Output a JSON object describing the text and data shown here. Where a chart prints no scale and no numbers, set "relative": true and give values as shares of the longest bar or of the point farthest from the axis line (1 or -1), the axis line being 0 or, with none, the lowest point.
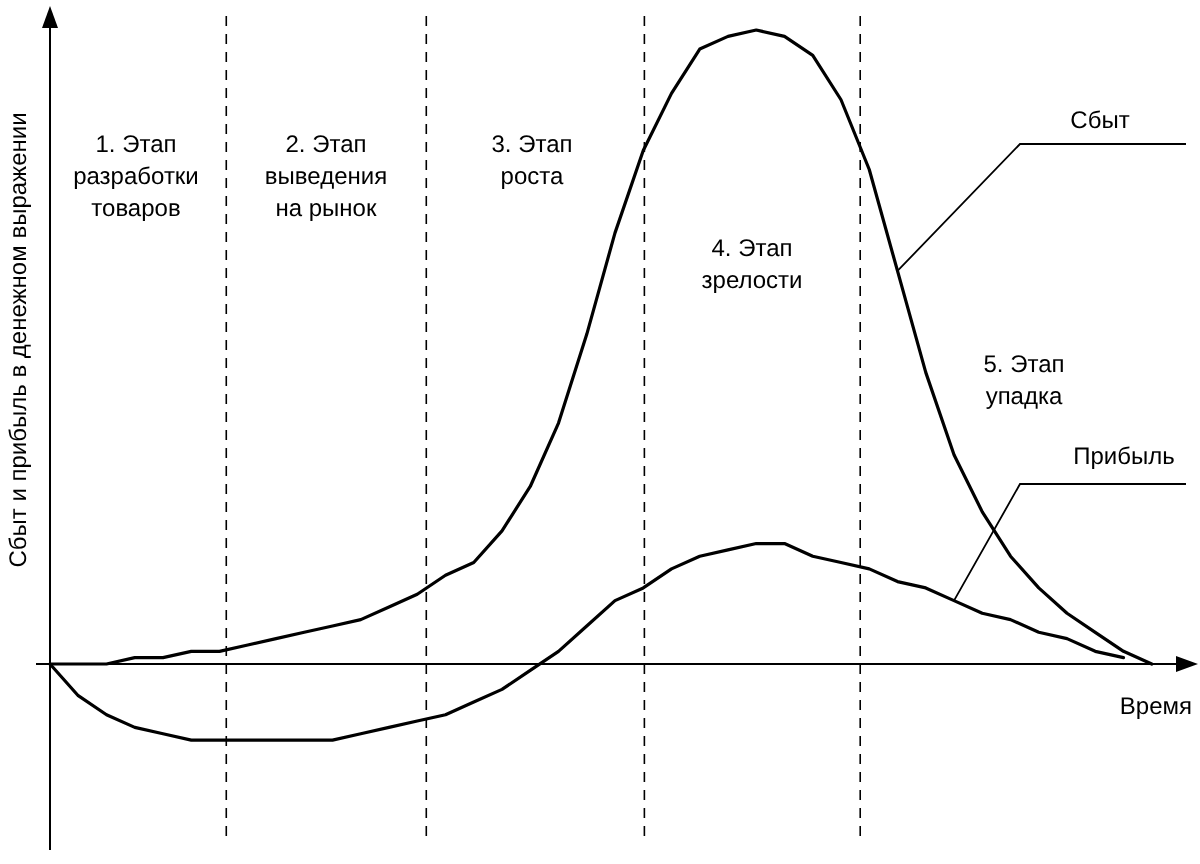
{
  "chart_data": {
    "type": "line",
    "relative": true,
    "xlabel": "Время",
    "ylabel": "Сбыт и прибыль в денежном выражении",
    "categories": [
      null,
      null,
      null,
      null,
      null,
      null,
      null,
      null,
      null,
      null,
      null,
      null,
      null,
      null,
      null,
      null,
      null,
      null,
      null,
      null,
      null,
      null,
      null,
      null,
      null,
      null,
      null,
      null,
      null,
      null,
      null,
      null,
      null,
      null,
      null,
      null,
      null,
      null,
      null,
      null,
      null
    ],
    "series": [
      {
        "name": "Сбыт",
        "color": "#000000",
        "values": [
          0,
          0,
          0,
          0.01,
          0.01,
          0.02,
          0.02,
          0.03,
          0.04,
          0.05,
          0.06,
          0.07,
          0.09,
          0.11,
          0.14,
          0.16,
          0.21,
          0.28,
          0.38,
          0.52,
          0.68,
          0.81,
          0.9,
          0.97,
          0.99,
          1,
          0.99,
          0.96,
          0.89,
          0.78,
          0.62,
          0.46,
          0.33,
          0.24,
          0.17,
          0.12,
          0.08,
          0.05,
          0.02,
          0,
          null
        ]
      },
      {
        "name": "Прибыль",
        "color": "#000000",
        "values": [
          0,
          -0.05,
          -0.08,
          -0.1,
          -0.11,
          -0.12,
          -0.12,
          -0.12,
          -0.12,
          -0.12,
          -0.12,
          -0.11,
          -0.1,
          -0.09,
          -0.08,
          -0.06,
          -0.04,
          -0.01,
          0.02,
          0.06,
          0.1,
          0.12,
          0.15,
          0.17,
          0.18,
          0.19,
          0.19,
          0.17,
          0.16,
          0.15,
          0.13,
          0.12,
          0.1,
          0.08,
          0.07,
          0.05,
          0.04,
          0.02,
          0.01,
          null,
          null
        ]
      }
    ],
    "annotations": [
      "1. Этап\nразработки\nтоваров",
      "2. Этап\nвыведения\nна рынок",
      "3. Этап\nроста",
      "4. Этап\nзрелости",
      "5. Этап\nупадка"
    ]
  }
}
